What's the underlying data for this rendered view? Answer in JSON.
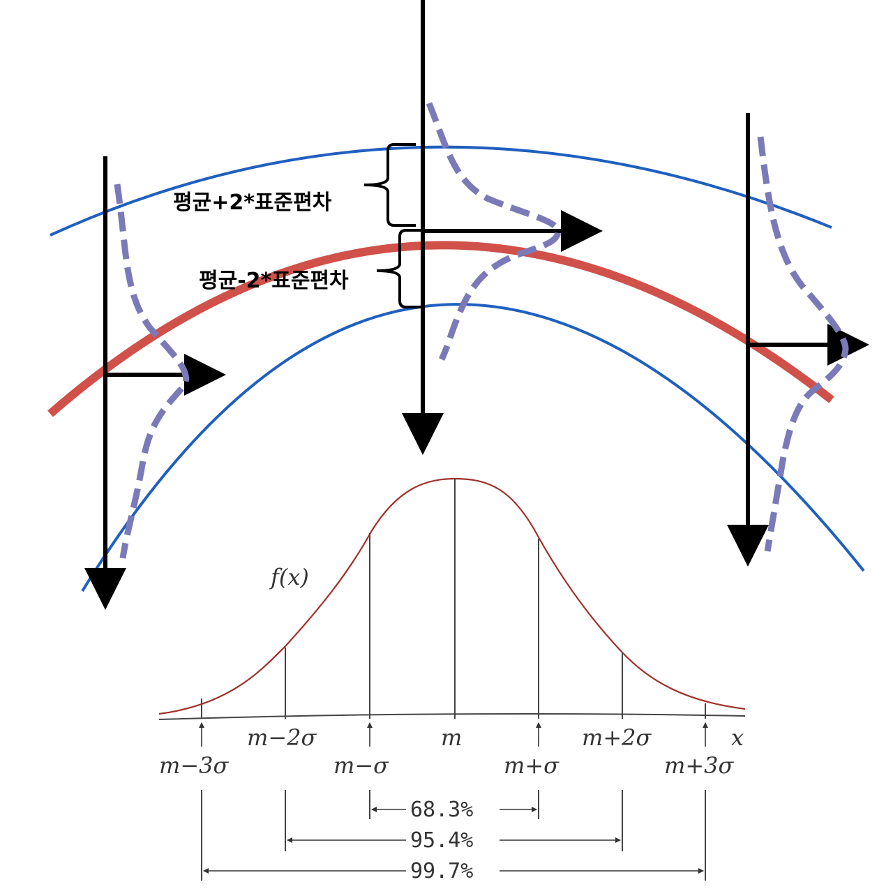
{
  "top_diagram": {
    "upper_label": "평균+2*표준편차",
    "lower_label": "평균-2*표준편차",
    "colors": {
      "mean_curve": "#d0504a",
      "band_curves": "#1f5fbf",
      "density_dashes": "#7b7ab8",
      "arrows": "#000000"
    }
  },
  "bell_diagram": {
    "function_label": "f(x)",
    "axis_label": "x",
    "curve_color": "#a0302a",
    "ticks": {
      "m_minus_3s": "m−3σ",
      "m_minus_2s": "m−2σ",
      "m_minus_s": "m−σ",
      "m": "m",
      "m_plus_s": "m+σ",
      "m_plus_2s": "m+2σ",
      "m_plus_3s": "m+3σ"
    },
    "ranges": {
      "one_sigma": "68.3%",
      "two_sigma": "95.4%",
      "three_sigma": "99.7%"
    }
  }
}
